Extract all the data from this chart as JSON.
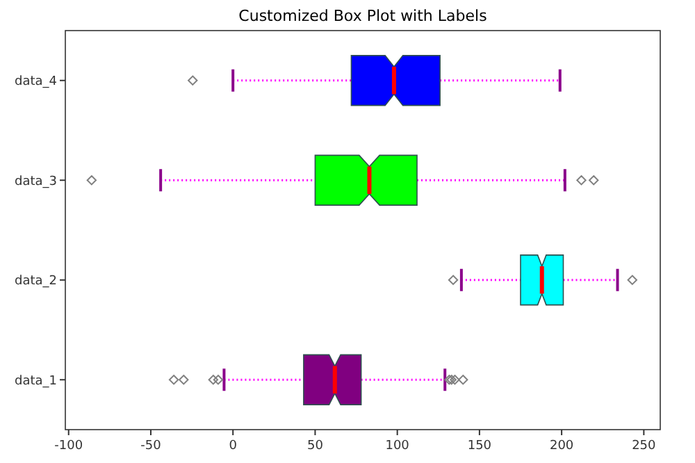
{
  "chart_data": {
    "type": "box",
    "title": "Customized Box Plot with Labels",
    "orientation": "horizontal",
    "categories": [
      "data_4",
      "data_3",
      "data_2",
      "data_1"
    ],
    "colors": [
      "#0000ff",
      "#00ff00",
      "#00ffff",
      "#800080"
    ],
    "boxes": [
      {
        "low": 0,
        "q1": 72,
        "median": 98,
        "q3": 126,
        "high": 199,
        "outliers": [
          -24.5
        ]
      },
      {
        "low": -44,
        "q1": 50,
        "median": 83,
        "q3": 112,
        "high": 202,
        "outliers": [
          -86,
          212,
          219.5
        ]
      },
      {
        "low": 139,
        "q1": 175,
        "median": 188,
        "q3": 201,
        "high": 234,
        "outliers": [
          134,
          243
        ]
      },
      {
        "low": -5.4,
        "q1": 43,
        "median": 62,
        "q3": 78,
        "high": 129,
        "outliers": [
          -36,
          -30,
          -12,
          -9,
          131.6,
          133,
          135,
          140
        ]
      }
    ],
    "xlim": [
      -102,
      260
    ],
    "xticks": [
      -100,
      -50,
      0,
      50,
      100,
      150,
      200,
      250
    ],
    "marker": "diamond",
    "line_style": "dotted",
    "grid": false
  }
}
